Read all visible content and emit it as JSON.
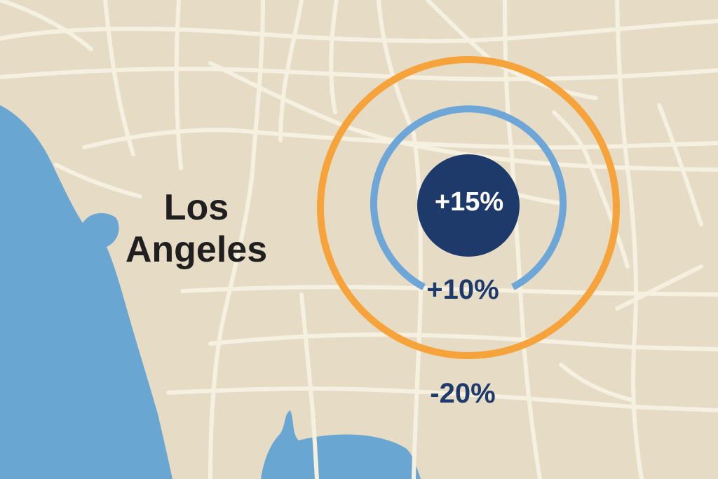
{
  "map": {
    "city_label": {
      "line1": "Los",
      "line2": "Angeles"
    },
    "zones": {
      "inner": {
        "label": "+15%",
        "color": "#1e3a6b"
      },
      "middle": {
        "label": "+10%",
        "color": "#6ea6d8"
      },
      "outer": {
        "label": "-20%",
        "color": "#f5a33a"
      }
    },
    "colors": {
      "land": "#e6dcc6",
      "water": "#6aa6d2",
      "roads": "#f6f0e0",
      "label_text": "#1f1f1f"
    }
  }
}
